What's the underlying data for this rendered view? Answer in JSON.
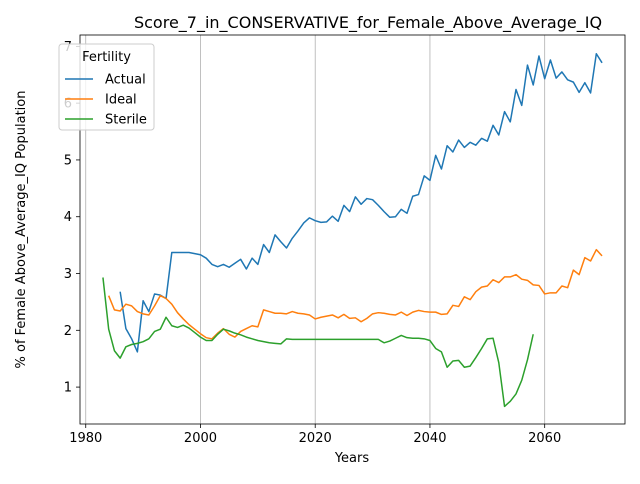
{
  "chart_data": {
    "type": "line",
    "title": "Score_7_in_CONSERVATIVE_for_Female_Above_Average_IQ",
    "xlabel": "Years",
    "ylabel": "% of Female Above_Average_IQ Population",
    "xlim": [
      1979,
      2074
    ],
    "ylim": [
      0.35,
      7.2
    ],
    "xticks": [
      1980,
      2000,
      2020,
      2040,
      2060
    ],
    "yticks": [
      1,
      2,
      3,
      4,
      5,
      6,
      7
    ],
    "grid": true,
    "legend": {
      "title": "Fertility",
      "placement": "top-left"
    },
    "series": [
      {
        "name": "Actual",
        "color": "#1f77b4",
        "x": [
          1986,
          1987,
          1988,
          1989,
          1990,
          1991,
          1992,
          1993,
          1994,
          1995,
          1996,
          1997,
          1998,
          1999,
          2000,
          2001,
          2002,
          2003,
          2004,
          2005,
          2006,
          2007,
          2008,
          2009,
          2010,
          2011,
          2012,
          2013,
          2014,
          2015,
          2016,
          2017,
          2018,
          2019,
          2020,
          2021,
          2022,
          2023,
          2024,
          2025,
          2026,
          2027,
          2028,
          2029,
          2030,
          2031,
          2032,
          2033,
          2034,
          2035,
          2036,
          2037,
          2038,
          2039,
          2040,
          2041,
          2042,
          2043,
          2044,
          2045,
          2046,
          2047,
          2048,
          2049,
          2050,
          2051,
          2052,
          2053,
          2054,
          2055,
          2056,
          2057,
          2058,
          2059,
          2060,
          2061,
          2062,
          2063,
          2064,
          2065,
          2066,
          2067,
          2068,
          2069,
          2070
        ],
        "values": [
          2.68,
          2.03,
          1.85,
          1.62,
          2.52,
          2.33,
          2.64,
          2.62,
          2.56,
          3.37,
          3.37,
          3.37,
          3.37,
          3.35,
          3.33,
          3.27,
          3.16,
          3.12,
          3.16,
          3.11,
          3.18,
          3.25,
          3.08,
          3.27,
          3.16,
          3.51,
          3.37,
          3.68,
          3.56,
          3.45,
          3.62,
          3.75,
          3.89,
          3.98,
          3.93,
          3.9,
          3.91,
          4.01,
          3.92,
          4.2,
          4.09,
          4.35,
          4.22,
          4.32,
          4.3,
          4.2,
          4.09,
          3.99,
          4.0,
          4.13,
          4.06,
          4.36,
          4.39,
          4.72,
          4.64,
          5.08,
          4.84,
          5.25,
          5.14,
          5.35,
          5.22,
          5.31,
          5.26,
          5.38,
          5.33,
          5.61,
          5.44,
          5.85,
          5.67,
          6.24,
          5.96,
          6.67,
          6.32,
          6.83,
          6.43,
          6.76,
          6.44,
          6.55,
          6.41,
          6.37,
          6.19,
          6.36,
          6.18,
          6.87,
          6.71
        ]
      },
      {
        "name": "Ideal",
        "color": "#ff7f0e",
        "x": [
          1984,
          1985,
          1986,
          1987,
          1988,
          1989,
          1990,
          1991,
          1992,
          1993,
          1994,
          1995,
          1996,
          1997,
          1998,
          1999,
          2000,
          2001,
          2002,
          2003,
          2004,
          2005,
          2006,
          2007,
          2008,
          2009,
          2010,
          2011,
          2012,
          2013,
          2014,
          2015,
          2016,
          2017,
          2018,
          2019,
          2020,
          2021,
          2022,
          2023,
          2024,
          2025,
          2026,
          2027,
          2028,
          2029,
          2030,
          2031,
          2032,
          2033,
          2034,
          2035,
          2036,
          2037,
          2038,
          2039,
          2040,
          2041,
          2042,
          2043,
          2044,
          2045,
          2046,
          2047,
          2048,
          2049,
          2050,
          2051,
          2052,
          2053,
          2054,
          2055,
          2056,
          2057,
          2058,
          2059,
          2060,
          2061,
          2062,
          2063,
          2064,
          2065,
          2066,
          2067,
          2068,
          2069,
          2070
        ],
        "values": [
          2.61,
          2.36,
          2.34,
          2.46,
          2.43,
          2.33,
          2.29,
          2.27,
          2.43,
          2.61,
          2.56,
          2.46,
          2.31,
          2.2,
          2.1,
          2.02,
          1.94,
          1.87,
          1.85,
          1.95,
          2.03,
          1.93,
          1.88,
          1.98,
          2.03,
          2.08,
          2.06,
          2.36,
          2.33,
          2.3,
          2.3,
          2.29,
          2.33,
          2.3,
          2.29,
          2.27,
          2.2,
          2.23,
          2.25,
          2.27,
          2.22,
          2.28,
          2.21,
          2.22,
          2.15,
          2.21,
          2.29,
          2.31,
          2.3,
          2.28,
          2.27,
          2.32,
          2.26,
          2.32,
          2.35,
          2.33,
          2.32,
          2.32,
          2.28,
          2.29,
          2.44,
          2.42,
          2.59,
          2.54,
          2.68,
          2.76,
          2.78,
          2.89,
          2.84,
          2.94,
          2.94,
          2.98,
          2.9,
          2.88,
          2.8,
          2.79,
          2.64,
          2.66,
          2.66,
          2.78,
          2.75,
          3.06,
          2.98,
          3.28,
          3.22,
          3.42,
          3.31
        ]
      },
      {
        "name": "Sterile",
        "color": "#2ca02c",
        "x": [
          1983,
          1984,
          1985,
          1986,
          1987,
          1988,
          1989,
          1990,
          1991,
          1992,
          1993,
          1994,
          1995,
          1996,
          1997,
          1998,
          1999,
          2000,
          2001,
          2002,
          2003,
          2004,
          2005,
          2006,
          2007,
          2008,
          2009,
          2010,
          2011,
          2012,
          2013,
          2014,
          2015,
          2016,
          2017,
          2018,
          2019,
          2020,
          2021,
          2022,
          2023,
          2024,
          2025,
          2026,
          2027,
          2028,
          2029,
          2030,
          2031,
          2032,
          2033,
          2034,
          2035,
          2036,
          2037,
          2038,
          2039,
          2040,
          2041,
          2042,
          2043,
          2044,
          2045,
          2046,
          2047,
          2048,
          2049,
          2050,
          2051,
          2052,
          2053,
          2054,
          2055,
          2056,
          2057,
          2058
        ],
        "values": [
          2.93,
          2.02,
          1.64,
          1.51,
          1.71,
          1.75,
          1.77,
          1.8,
          1.85,
          1.98,
          2.02,
          2.23,
          2.08,
          2.05,
          2.09,
          2.04,
          1.96,
          1.88,
          1.82,
          1.82,
          1.93,
          2.02,
          1.99,
          1.95,
          1.92,
          1.88,
          1.85,
          1.82,
          1.8,
          1.78,
          1.77,
          1.76,
          1.85,
          1.84,
          1.84,
          1.84,
          1.84,
          1.84,
          1.84,
          1.84,
          1.84,
          1.84,
          1.84,
          1.84,
          1.84,
          1.84,
          1.84,
          1.84,
          1.84,
          1.78,
          1.81,
          1.86,
          1.91,
          1.87,
          1.86,
          1.86,
          1.85,
          1.82,
          1.68,
          1.62,
          1.35,
          1.46,
          1.47,
          1.35,
          1.37,
          1.52,
          1.68,
          1.85,
          1.86,
          1.43,
          0.66,
          0.75,
          0.88,
          1.12,
          1.48,
          1.93
        ]
      }
    ]
  }
}
